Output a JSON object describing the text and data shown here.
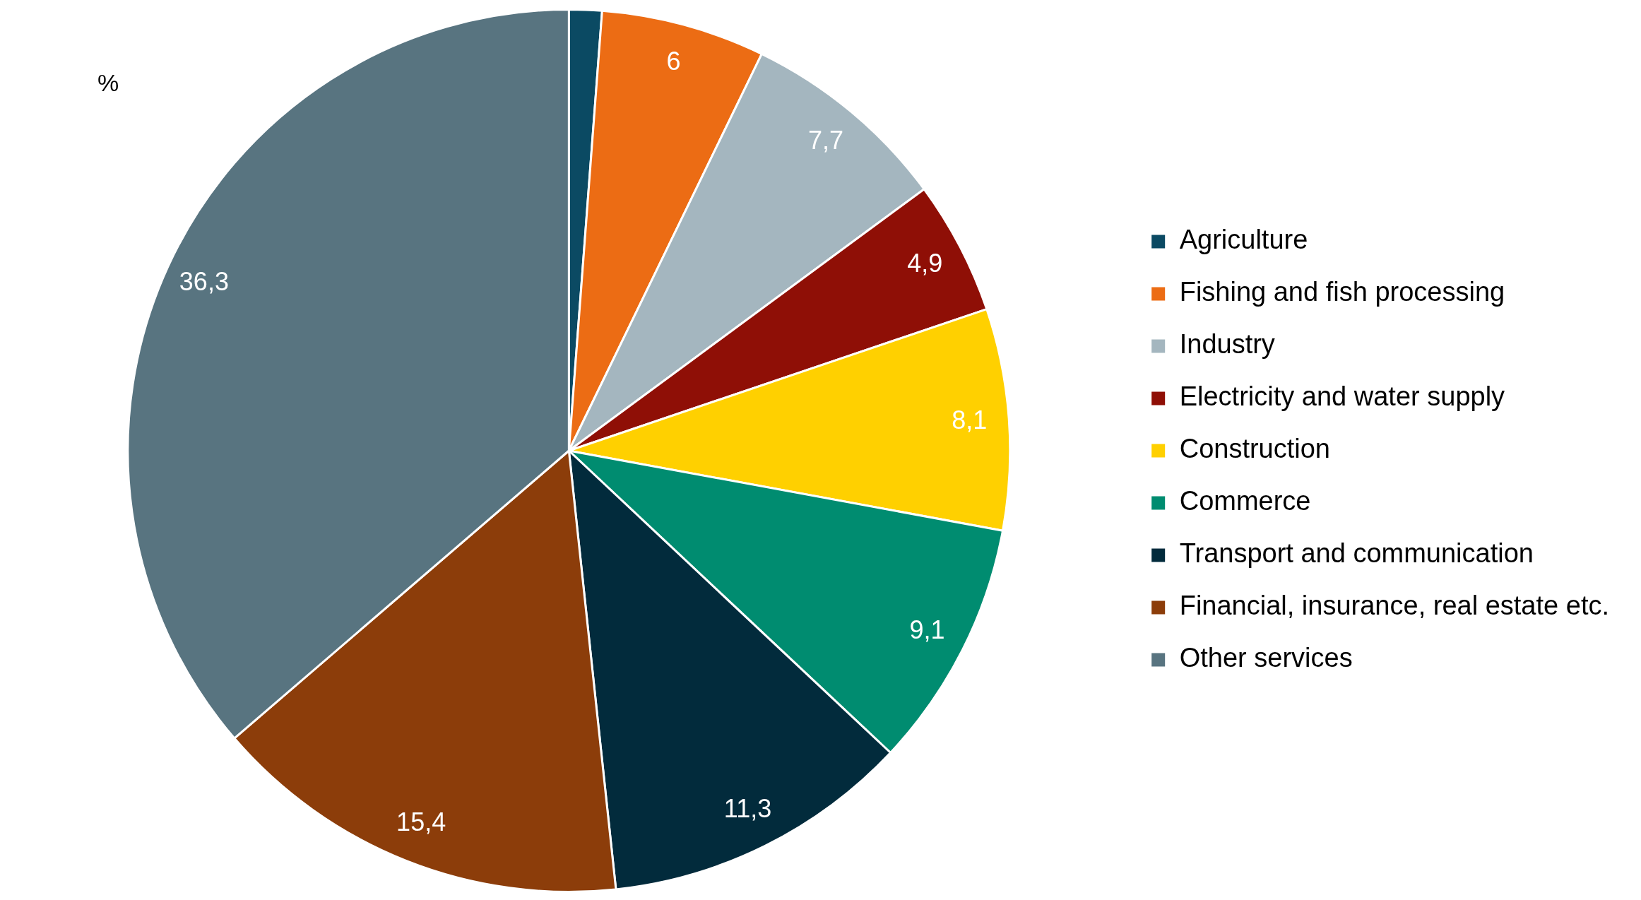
{
  "chart_data": {
    "type": "pie",
    "categories": [
      "Agriculture",
      "Fishing and fish processing",
      "Industry",
      "Electricity and water supply",
      "Construction",
      "Commerce",
      "Transport and communication",
      "Financial, insurance, real estate etc.",
      "Other services"
    ],
    "values": [
      1.2,
      6,
      7.7,
      4.9,
      8.1,
      9.1,
      11.3,
      15.4,
      36.3
    ],
    "value_labels": [
      null,
      "6",
      "7,7",
      "4,9",
      "8,1",
      "9,1",
      "11,3",
      "15,4",
      "36,3"
    ],
    "colors": [
      "#0b4a63",
      "#ec6c14",
      "#a4b6bf",
      "#8f0f06",
      "#ffd000",
      "#008c70",
      "#022b3c",
      "#8c3d0a",
      "#587480"
    ],
    "legend": "right",
    "annotations": [
      "%"
    ]
  }
}
